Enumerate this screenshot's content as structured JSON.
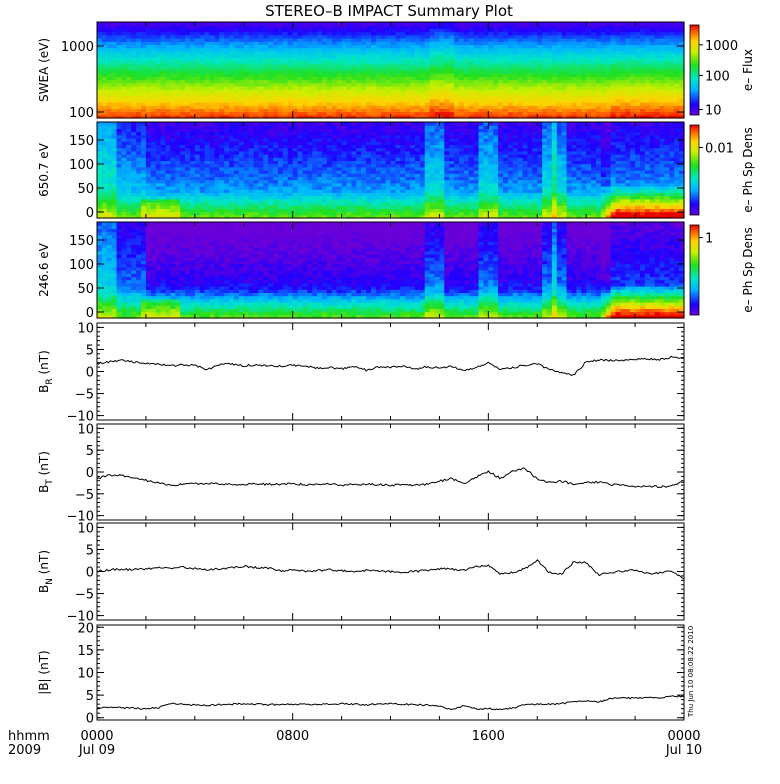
{
  "title": "STEREO–B IMPACT Summary Plot",
  "timestamp_note": "Thu Jun 10 08:08:22 2010",
  "x_axis": {
    "corner_top": "hhmm",
    "corner_bottom": "2009",
    "tick_labels": [
      {
        "time": "0000",
        "date": "Jul 09"
      },
      {
        "time": "0800",
        "date": ""
      },
      {
        "time": "1600",
        "date": ""
      },
      {
        "time": "0000",
        "date": "Jul 10"
      }
    ]
  },
  "chart_data": [
    {
      "type": "heatmap",
      "name": "swea",
      "ylabel": "SWEA (eV)",
      "y_tick_labels": [
        "1000",
        "100"
      ],
      "colorbar_label": "e–  Flux",
      "colorbar_tick_labels": [
        "1000",
        "100",
        "10"
      ],
      "x_range_hours": [
        0,
        24
      ],
      "y_scale": "log",
      "y_range": [
        100,
        1700
      ],
      "description_bands": "red at low energies transitioning through yellow, green, cyan to blue at high energies; enhanced red near 100 eV after hour 21"
    },
    {
      "type": "heatmap",
      "name": "pad_650",
      "ylabel": "650.7 eV",
      "y_tick_labels": [
        "150",
        "100",
        "50",
        "0"
      ],
      "colorbar_label": "e–  Ph Sp Dens",
      "colorbar_tick_labels": [
        "0.01"
      ],
      "y_range": [
        0,
        180
      ],
      "x_range_hours": [
        0,
        24
      ]
    },
    {
      "type": "heatmap",
      "name": "pad_246",
      "ylabel": "246.6 eV",
      "y_tick_labels": [
        "150",
        "100",
        "50",
        "0"
      ],
      "colorbar_label": "e–  Ph Sp Dens",
      "colorbar_tick_labels": [
        "1"
      ],
      "y_range": [
        0,
        180
      ],
      "x_range_hours": [
        0,
        24
      ]
    },
    {
      "type": "line",
      "name": "br",
      "ylabel_main": "B",
      "ylabel_sub": "R",
      "ylabel_unit": "(nT)",
      "y_tick_labels": [
        "10",
        "5",
        "0",
        "−5",
        "−10"
      ],
      "ylim": [
        -11,
        11
      ],
      "x": [
        0,
        0.5,
        1,
        1.5,
        2,
        2.5,
        3,
        3.5,
        4,
        4.5,
        5,
        5.5,
        6,
        6.5,
        7,
        7.5,
        8,
        8.5,
        9,
        9.5,
        10,
        10.5,
        11,
        11.5,
        12,
        12.5,
        13,
        13.5,
        14,
        14.5,
        15,
        15.5,
        16,
        16.5,
        17,
        17.5,
        18,
        18.5,
        19,
        19.5,
        20,
        20.5,
        21,
        21.5,
        22,
        22.5,
        23,
        23.5,
        24
      ],
      "y": [
        1.8,
        2.2,
        2.6,
        2.1,
        1.8,
        1.6,
        1.3,
        1.5,
        1.4,
        0.4,
        1.6,
        1.7,
        1.3,
        1.5,
        1.2,
        1.3,
        1.4,
        1.1,
        0.8,
        0.9,
        0.6,
        1.2,
        0.3,
        1.0,
        0.9,
        1.3,
        0.5,
        1.1,
        0.8,
        1.2,
        0.1,
        0.8,
        2.0,
        0.5,
        0.9,
        1.4,
        1.7,
        0.4,
        -0.3,
        -0.8,
        2.2,
        2.6,
        2.5,
        2.4,
        2.8,
        2.9,
        2.7,
        3.3,
        3.1
      ]
    },
    {
      "type": "line",
      "name": "bt",
      "ylabel_main": "B",
      "ylabel_sub": "T",
      "ylabel_unit": "(nT)",
      "y_tick_labels": [
        "10",
        "5",
        "0",
        "−5",
        "−10"
      ],
      "ylim": [
        -11,
        11
      ],
      "x": [
        0,
        0.5,
        1,
        1.5,
        2,
        2.5,
        3,
        3.5,
        4,
        4.5,
        5,
        5.5,
        6,
        6.5,
        7,
        7.5,
        8,
        8.5,
        9,
        9.5,
        10,
        10.5,
        11,
        11.5,
        12,
        12.5,
        13,
        13.5,
        14,
        14.5,
        15,
        15.5,
        16,
        16.5,
        17,
        17.5,
        18,
        18.5,
        19,
        19.5,
        20,
        20.5,
        21,
        21.5,
        22,
        22.5,
        23,
        23.5,
        24
      ],
      "y": [
        -1.5,
        -0.7,
        -0.8,
        -1.5,
        -1.9,
        -2.4,
        -3.0,
        -2.8,
        -2.7,
        -2.6,
        -2.7,
        -2.8,
        -2.9,
        -2.7,
        -2.8,
        -2.8,
        -2.7,
        -2.9,
        -2.8,
        -2.8,
        -3.0,
        -2.9,
        -2.8,
        -2.9,
        -3.0,
        -2.9,
        -3.0,
        -2.8,
        -2.1,
        -1.5,
        -2.6,
        -1.2,
        0.2,
        -1.5,
        0.2,
        0.8,
        -1.6,
        -2.4,
        -2.1,
        -2.8,
        -2.4,
        -2.3,
        -2.9,
        -3.0,
        -3.4,
        -3.2,
        -3.4,
        -3.2,
        -2.2
      ]
    },
    {
      "type": "line",
      "name": "bn",
      "ylabel_main": "B",
      "ylabel_sub": "N",
      "ylabel_unit": "(nT)",
      "y_tick_labels": [
        "10",
        "5",
        "0",
        "−5",
        "−10"
      ],
      "ylim": [
        -11,
        11
      ],
      "x": [
        0,
        0.5,
        1,
        1.5,
        2,
        2.5,
        3,
        3.5,
        4,
        4.5,
        5,
        5.5,
        6,
        6.5,
        7,
        7.5,
        8,
        8.5,
        9,
        9.5,
        10,
        10.5,
        11,
        11.5,
        12,
        12.5,
        13,
        13.5,
        14,
        14.5,
        15,
        15.5,
        16,
        16.5,
        17,
        17.5,
        18,
        18.5,
        19,
        19.5,
        20,
        20.5,
        21,
        21.5,
        22,
        22.5,
        23,
        23.5,
        24
      ],
      "y": [
        0.0,
        0.4,
        0.5,
        0.4,
        0.6,
        0.8,
        0.7,
        1.0,
        0.7,
        0.4,
        0.6,
        0.8,
        1.2,
        0.9,
        0.8,
        0.1,
        0.5,
        0.0,
        0.2,
        0.4,
        0.2,
        -0.1,
        0.3,
        0.1,
        0.0,
        -0.2,
        0.0,
        0.3,
        0.6,
        0.5,
        0.3,
        1.2,
        1.3,
        -0.6,
        -0.2,
        0.7,
        2.5,
        -0.3,
        -0.5,
        2.2,
        2.0,
        -0.8,
        -0.2,
        0.1,
        0.2,
        -0.5,
        -0.3,
        0.1,
        -1.8
      ]
    },
    {
      "type": "line",
      "name": "bmag",
      "ylabel_main": "|B|",
      "ylabel_sub": "",
      "ylabel_unit": "(nT)",
      "y_tick_labels": [
        "20",
        "15",
        "10",
        "5",
        "0"
      ],
      "ylim": [
        -0.5,
        20.5
      ],
      "x": [
        0,
        0.5,
        1,
        1.5,
        2,
        2.5,
        3,
        3.5,
        4,
        4.5,
        5,
        5.5,
        6,
        6.5,
        7,
        7.5,
        8,
        8.5,
        9,
        9.5,
        10,
        10.5,
        11,
        11.5,
        12,
        12.5,
        13,
        13.5,
        14,
        14.5,
        15,
        15.5,
        16,
        16.5,
        17,
        17.5,
        18,
        18.5,
        19,
        19.5,
        20,
        20.5,
        21,
        21.5,
        22,
        22.5,
        23,
        23.5,
        24
      ],
      "y": [
        2.1,
        2.3,
        2.2,
        2.1,
        2.0,
        2.2,
        3.2,
        2.9,
        2.8,
        2.7,
        2.9,
        3.0,
        3.1,
        3.0,
        2.9,
        2.9,
        2.9,
        3.0,
        2.9,
        3.0,
        3.1,
        3.0,
        2.9,
        3.0,
        3.2,
        3.0,
        2.9,
        2.8,
        2.5,
        1.8,
        2.6,
        1.9,
        2.0,
        1.8,
        2.1,
        2.9,
        3.0,
        3.0,
        3.1,
        3.5,
        3.8,
        3.4,
        4.3,
        4.4,
        4.3,
        4.5,
        4.3,
        4.9,
        4.6
      ]
    }
  ]
}
